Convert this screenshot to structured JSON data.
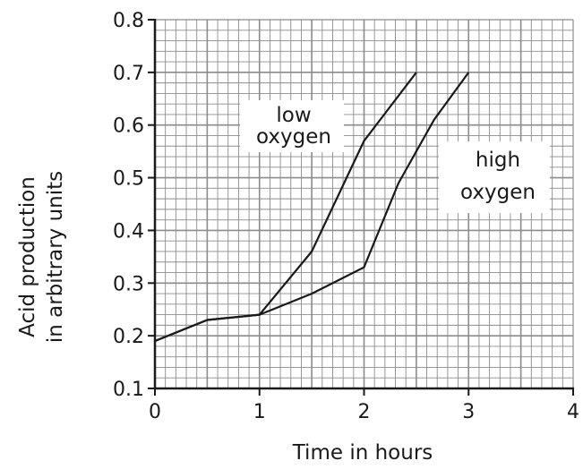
{
  "chart_data": {
    "type": "line",
    "title": "",
    "xlabel": "Time in hours",
    "ylabel_lines": [
      "Acid production",
      "in arbitrary units"
    ],
    "xlim": [
      0,
      4
    ],
    "ylim": [
      0.1,
      0.8
    ],
    "x_ticks": [
      "0",
      "1",
      "2",
      "3",
      "4"
    ],
    "y_ticks": [
      "0.1",
      "0.2",
      "0.3",
      "0.4",
      "0.5",
      "0.6",
      "0.7",
      "0.8"
    ],
    "grid": true,
    "series": [
      {
        "name": "low oxygen",
        "x": [
          0,
          0.5,
          1,
          1.5,
          2,
          2.5
        ],
        "y": [
          0.19,
          0.23,
          0.24,
          0.36,
          0.57,
          0.7
        ]
      },
      {
        "name": "high oxygen",
        "x": [
          0,
          0.5,
          1,
          1.5,
          2,
          2.33,
          2.67,
          3
        ],
        "y": [
          0.19,
          0.23,
          0.24,
          0.28,
          0.33,
          0.49,
          0.61,
          0.7
        ]
      }
    ],
    "annotations": [
      {
        "lines": [
          "low",
          "oxygen"
        ],
        "series": "low oxygen"
      },
      {
        "lines": [
          "high",
          "oxygen"
        ],
        "series": "high oxygen"
      }
    ],
    "colors": {
      "grid": "#8c8c8c",
      "axis": "#1a1a1a",
      "line": "#1a1a1a"
    }
  }
}
